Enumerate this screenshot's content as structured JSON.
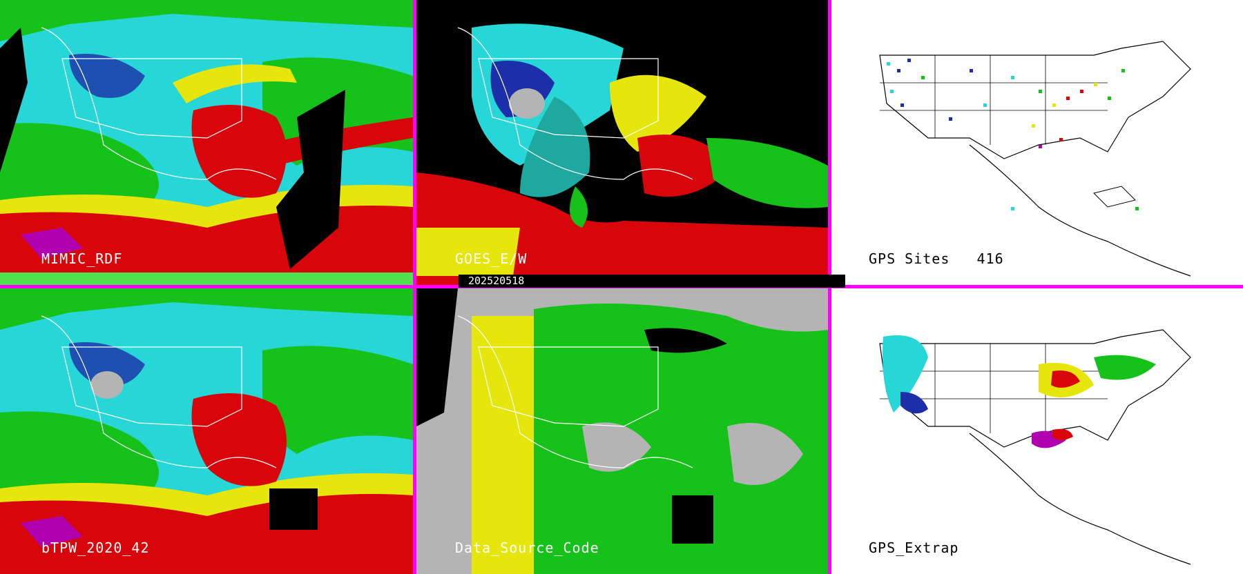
{
  "date_stamp": "202520518",
  "panels": [
    {
      "id": "mimic",
      "label": "MIMIC_RDF",
      "style": "dark"
    },
    {
      "id": "goes",
      "label": "GOES_E/W",
      "style": "dark"
    },
    {
      "id": "gps_sites",
      "label": "GPS Sites",
      "count": "416",
      "style": "light"
    },
    {
      "id": "btpw",
      "label": "bTPW_2020_42",
      "style": "dark"
    },
    {
      "id": "dsc",
      "label": "Data_Source_Code",
      "style": "dark"
    },
    {
      "id": "gps_extrap",
      "label": "GPS_Extrap",
      "style": "light"
    }
  ],
  "colors": {
    "separator": "#ff00ff",
    "cyan": "#27d6d6",
    "teal": "#1fa8a0",
    "blue": "#1c2ea8",
    "green": "#16c21a",
    "lightgreen": "#4fe34f",
    "yellow": "#e6e60d",
    "red": "#d8050a",
    "darkred": "#9a0000",
    "magenta": "#b000b0",
    "gray": "#b4b4b4",
    "white": "#ffffff",
    "black": "#000000"
  }
}
